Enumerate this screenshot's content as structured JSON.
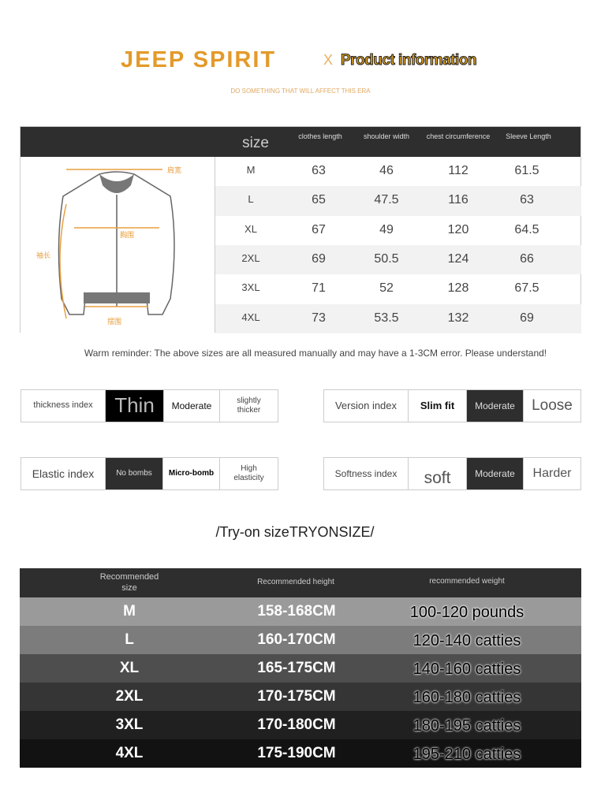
{
  "header": {
    "brand": "JEEP SPIRIT",
    "separator": "X",
    "title": "Product information",
    "slogan": "DO SOMETHING THAT WILL AFFECT THIS ERA"
  },
  "size_table": {
    "headers": [
      "size",
      "clothes length",
      "shoulder width",
      "chest circumference",
      "Sleeve Length"
    ],
    "diagram_labels": {
      "shoulder": "肩宽",
      "chest": "胸围",
      "sleeve": "袖长",
      "hem": "摆围"
    },
    "rows": [
      [
        "M",
        "63",
        "46",
        "112",
        "61.5"
      ],
      [
        "L",
        "65",
        "47.5",
        "116",
        "63"
      ],
      [
        "XL",
        "67",
        "49",
        "120",
        "64.5"
      ],
      [
        "2XL",
        "69",
        "50.5",
        "124",
        "66"
      ],
      [
        "3XL",
        "71",
        "52",
        "128",
        "67.5"
      ],
      [
        "4XL",
        "73",
        "53.5",
        "132",
        "69"
      ]
    ]
  },
  "reminder": "Warm reminder: The above sizes are all measured manually and may have a 1-3CM error. Please understand!",
  "indices": {
    "thickness": {
      "label": "thickness index",
      "options": [
        "Thin",
        "Moderate",
        "slightly thicker"
      ],
      "selected": "Thin"
    },
    "version": {
      "label": "Version index",
      "options": [
        "Slim fit",
        "Moderate",
        "Loose"
      ],
      "selected": "Moderate"
    },
    "elastic": {
      "label": "Elastic index",
      "options": [
        "No bombs",
        "Micro-bomb",
        "High elasticity"
      ],
      "selected": "No bombs"
    },
    "softness": {
      "label": "Softness index",
      "options": [
        "soft",
        "Moderate",
        "Harder"
      ],
      "selected": "Moderate"
    }
  },
  "tryon": {
    "title": "/Try-on sizeTRYONSIZE/",
    "headers": [
      "Recommended size",
      "Recommended height",
      "recommended weight"
    ],
    "rows": [
      [
        "M",
        "158-168CM",
        "100-120 pounds"
      ],
      [
        "L",
        "160-170CM",
        "120-140 catties"
      ],
      [
        "XL",
        "165-175CM",
        "140-160 catties"
      ],
      [
        "2XL",
        "170-175CM",
        "160-180 catties"
      ],
      [
        "3XL",
        "170-180CM",
        "180-195 catties"
      ],
      [
        "4XL",
        "175-190CM",
        "195-210 catties"
      ]
    ],
    "row_colors": [
      "#9a9a9a",
      "#7c7c7c",
      "#4e4e4e",
      "#353535",
      "#202020",
      "#121212"
    ]
  }
}
